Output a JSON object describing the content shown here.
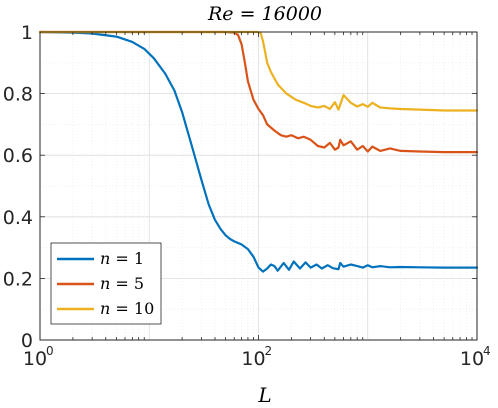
{
  "chart_data": {
    "type": "line",
    "title": "Re = 16000",
    "xlabel": "L",
    "ylabel": "",
    "xscale": "log",
    "xlim": [
      1,
      10000
    ],
    "ylim": [
      0,
      1
    ],
    "grid": true,
    "legend_position": "bottom-left",
    "x_ticks": [
      {
        "base": "10",
        "exp": "0"
      },
      {
        "base": "10",
        "exp": "2"
      },
      {
        "base": "10",
        "exp": "4"
      }
    ],
    "y_ticks": [
      "0",
      "0.2",
      "0.4",
      "0.6",
      "0.8",
      "1"
    ],
    "series": [
      {
        "name": "n = 1",
        "name_var": "n",
        "name_val": "= 1",
        "color": "#0072BD",
        "x": [
          1,
          2,
          3,
          5,
          7,
          9,
          11,
          14,
          17,
          20,
          25,
          30,
          35,
          40,
          45,
          50,
          55,
          60,
          70,
          80,
          90,
          100,
          110,
          120,
          130,
          140,
          150,
          170,
          190,
          210,
          240,
          270,
          300,
          340,
          380,
          430,
          480,
          540,
          560,
          600,
          700,
          800,
          900,
          1000,
          1100,
          1300,
          1600,
          2000,
          3000,
          5000,
          10000
        ],
        "values": [
          1.0,
          0.998,
          0.995,
          0.985,
          0.968,
          0.945,
          0.915,
          0.865,
          0.81,
          0.74,
          0.62,
          0.52,
          0.44,
          0.39,
          0.36,
          0.34,
          0.328,
          0.32,
          0.31,
          0.295,
          0.27,
          0.235,
          0.222,
          0.232,
          0.245,
          0.24,
          0.225,
          0.25,
          0.228,
          0.255,
          0.232,
          0.252,
          0.235,
          0.245,
          0.232,
          0.243,
          0.233,
          0.23,
          0.25,
          0.238,
          0.245,
          0.24,
          0.235,
          0.243,
          0.236,
          0.24,
          0.236,
          0.237,
          0.236,
          0.235,
          0.235
        ]
      },
      {
        "name": "n = 5",
        "name_var": "n",
        "name_val": "= 5",
        "color": "#D95319",
        "x": [
          1,
          10,
          30,
          50,
          60,
          65,
          70,
          75,
          80,
          90,
          100,
          110,
          120,
          140,
          160,
          180,
          200,
          230,
          260,
          300,
          350,
          400,
          450,
          500,
          540,
          560,
          600,
          700,
          800,
          900,
          1000,
          1100,
          1300,
          1600,
          2000,
          3000,
          5000,
          10000
        ],
        "values": [
          1.0,
          1.0,
          1.0,
          1.0,
          0.998,
          0.99,
          0.96,
          0.9,
          0.84,
          0.78,
          0.75,
          0.73,
          0.7,
          0.68,
          0.665,
          0.66,
          0.665,
          0.655,
          0.66,
          0.65,
          0.63,
          0.625,
          0.64,
          0.618,
          0.625,
          0.65,
          0.632,
          0.645,
          0.618,
          0.63,
          0.612,
          0.628,
          0.614,
          0.622,
          0.614,
          0.612,
          0.61,
          0.61
        ]
      },
      {
        "name": "n = 10",
        "name_var": "n",
        "name_val": "= 10",
        "color": "#EDB120",
        "x": [
          1,
          10,
          50,
          100,
          105,
          110,
          120,
          130,
          150,
          180,
          220,
          260,
          300,
          350,
          400,
          450,
          500,
          540,
          600,
          700,
          800,
          900,
          1000,
          1100,
          1300,
          1600,
          2000,
          3000,
          5000,
          10000
        ],
        "values": [
          1.0,
          1.0,
          1.0,
          1.0,
          0.995,
          0.97,
          0.9,
          0.87,
          0.83,
          0.8,
          0.78,
          0.77,
          0.76,
          0.755,
          0.76,
          0.75,
          0.772,
          0.748,
          0.795,
          0.77,
          0.758,
          0.766,
          0.757,
          0.77,
          0.755,
          0.752,
          0.75,
          0.748,
          0.745,
          0.745
        ]
      }
    ]
  }
}
